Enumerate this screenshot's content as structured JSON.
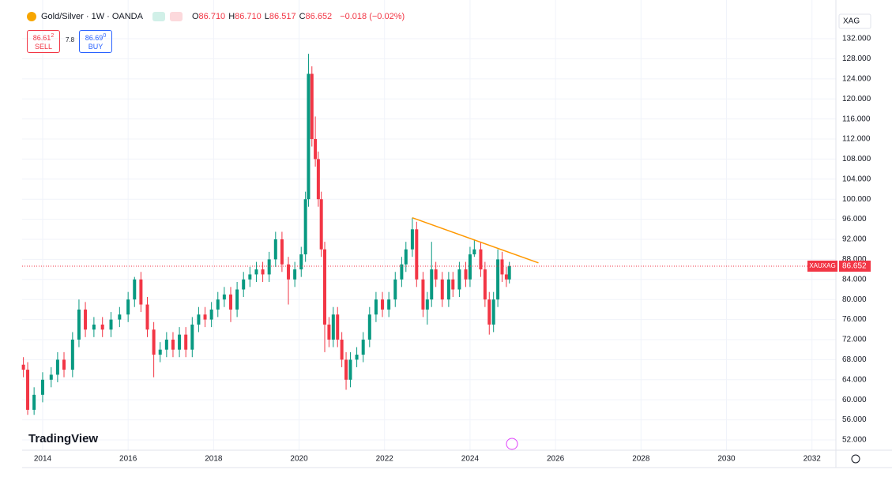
{
  "header": {
    "symbol": "Gold/Silver · 1W · OANDA",
    "ohlc": [
      {
        "key": "O",
        "value": "86.710"
      },
      {
        "key": "H",
        "value": "86.710"
      },
      {
        "key": "L",
        "value": "86.517"
      },
      {
        "key": "C",
        "value": "86.652"
      }
    ],
    "change": "−0.018 (−0.02%)",
    "sell": {
      "price": "86.61",
      "small": "2",
      "label": "SELL"
    },
    "spread": "7.8",
    "buy": {
      "price": "86.69",
      "small": "0",
      "label": "BUY"
    }
  },
  "currency": "XAG",
  "logo": "TradingView",
  "chart_data": {
    "type": "candlestick",
    "x": [
      2013.55,
      2013.65,
      2013.8,
      2014.0,
      2014.2,
      2014.35,
      2014.5,
      2014.7,
      2014.85,
      2015.0,
      2015.2,
      2015.4,
      2015.6,
      2015.8,
      2016.0,
      2016.15,
      2016.3,
      2016.45,
      2016.6,
      2016.75,
      2016.9,
      2017.05,
      2017.2,
      2017.35,
      2017.5,
      2017.65,
      2017.8,
      2017.95,
      2018.1,
      2018.25,
      2018.4,
      2018.55,
      2018.7,
      2018.85,
      2019.0,
      2019.15,
      2019.3,
      2019.45,
      2019.6,
      2019.75,
      2019.9,
      2020.05,
      2020.15,
      2020.22,
      2020.3,
      2020.38,
      2020.45,
      2020.52,
      2020.6,
      2020.7,
      2020.8,
      2020.9,
      2021.0,
      2021.1,
      2021.2,
      2021.35,
      2021.5,
      2021.65,
      2021.8,
      2021.95,
      2022.1,
      2022.25,
      2022.4,
      2022.5,
      2022.65,
      2022.75,
      2022.9,
      2023.0,
      2023.1,
      2023.2,
      2023.35,
      2023.5,
      2023.6,
      2023.75,
      2023.9,
      2024.0,
      2024.1,
      2024.25,
      2024.35,
      2024.45,
      2024.55,
      2024.65,
      2024.75,
      2024.85,
      2024.92
    ],
    "open": [
      67,
      66,
      58,
      61,
      64,
      65,
      68,
      66,
      72,
      78,
      74,
      75,
      74,
      76,
      77,
      80,
      84,
      79,
      74,
      69,
      70,
      72,
      70,
      73,
      70,
      75,
      77,
      76,
      78,
      80,
      81,
      78,
      82,
      84,
      85,
      86,
      85,
      88,
      92,
      87,
      84,
      86,
      89,
      100,
      125,
      112,
      108,
      100,
      90,
      75,
      72,
      77,
      72,
      68,
      64,
      68,
      69,
      72,
      77,
      80,
      78,
      80,
      84,
      87,
      90,
      94,
      84,
      78,
      80,
      86,
      84,
      80,
      84,
      82,
      86,
      84,
      89,
      90,
      86,
      80,
      75,
      80,
      88,
      85,
      84
    ],
    "high": [
      68.5,
      67.5,
      62.5,
      65.5,
      66.5,
      69.5,
      69.5,
      73.5,
      80,
      79.5,
      76.5,
      76.5,
      77.5,
      78.5,
      81.5,
      84.5,
      85.5,
      80.5,
      75.5,
      71.5,
      73.5,
      73.5,
      74.5,
      74.5,
      76.5,
      78.5,
      78.5,
      79.5,
      81.5,
      82.5,
      82.5,
      83.5,
      85.5,
      86.5,
      87.5,
      87.5,
      89.5,
      93.5,
      93.5,
      88.5,
      87.5,
      90.5,
      101.5,
      129,
      126.5,
      116.5,
      109.5,
      101.5,
      91.5,
      76.5,
      78.5,
      78.5,
      73.5,
      69.5,
      69.5,
      70.5,
      73.5,
      78.5,
      81.5,
      81.5,
      81.5,
      85.5,
      88.5,
      91.5,
      96.3,
      95.5,
      85.5,
      81.5,
      91.5,
      87.5,
      85.5,
      85.5,
      85.5,
      87.5,
      87.5,
      90.5,
      92,
      91.5,
      87.5,
      81.5,
      81.5,
      90,
      89.5,
      86.5,
      87.5
    ],
    "low": [
      64.5,
      57,
      57,
      59.5,
      62.5,
      63.5,
      64.5,
      64.5,
      70.5,
      72.5,
      72.5,
      72.5,
      72.5,
      74.5,
      75.5,
      78.5,
      77.5,
      72.5,
      64.5,
      67.5,
      68.5,
      68.5,
      68.5,
      68.5,
      68.5,
      73.5,
      74.5,
      74.5,
      76.5,
      78.5,
      75.5,
      76.5,
      80.5,
      82.5,
      83.5,
      83.5,
      83.5,
      86.5,
      85.5,
      79,
      82.5,
      84.5,
      87.5,
      98.5,
      110.5,
      106.5,
      98.5,
      88.5,
      69.5,
      70.5,
      70.5,
      70.5,
      66.5,
      62,
      62.5,
      66.5,
      67.5,
      70.5,
      75.5,
      76.5,
      76.5,
      78.5,
      82.5,
      85.5,
      88.5,
      82.5,
      76.5,
      75,
      78.5,
      82.5,
      78.5,
      78.5,
      80.5,
      80.5,
      82.5,
      82.5,
      88.5,
      84.5,
      78.5,
      73,
      73.5,
      78.5,
      83.5,
      82.5,
      83.2
    ],
    "close": [
      66,
      58,
      61,
      64,
      65,
      68,
      66,
      72,
      78,
      74,
      75,
      74,
      76,
      77,
      80,
      84,
      79,
      74,
      69,
      70,
      72,
      70,
      73,
      70,
      75,
      77,
      76,
      78,
      80,
      81,
      78,
      82,
      84,
      85,
      86,
      85,
      88,
      92,
      87,
      84,
      86,
      89,
      100,
      125,
      112,
      108,
      100,
      90,
      75,
      72,
      77,
      72,
      68,
      64,
      68,
      69,
      72,
      77,
      80,
      78,
      80,
      84,
      87,
      90,
      94,
      84,
      78,
      80,
      86,
      84,
      80,
      84,
      82,
      86,
      84,
      89,
      90,
      86,
      80,
      75,
      80,
      88,
      85,
      84,
      86.652
    ],
    "up_color": "#089981",
    "down_color": "#f23645",
    "xlim": [
      2013.52,
      2032.56
    ],
    "xticks": [
      2014,
      2016,
      2018,
      2020,
      2022,
      2024,
      2026,
      2028,
      2030,
      2032
    ],
    "ylim": [
      49.95,
      139.72
    ],
    "yticks": [
      {
        "value": 52,
        "label": "52.000"
      },
      {
        "value": 56,
        "label": "56.000"
      },
      {
        "value": 60,
        "label": "60.000"
      },
      {
        "value": 64,
        "label": "64.000"
      },
      {
        "value": 68,
        "label": "68.000"
      },
      {
        "value": 72,
        "label": "72.000"
      },
      {
        "value": 76,
        "label": "76.000"
      },
      {
        "value": 80,
        "label": "80.000"
      },
      {
        "value": 84,
        "label": "84.000"
      },
      {
        "value": 88,
        "label": "88.000"
      },
      {
        "value": 92,
        "label": "92.000"
      },
      {
        "value": 96,
        "label": "96.000"
      },
      {
        "value": 100,
        "label": "100.000"
      },
      {
        "value": 104,
        "label": "104.000"
      },
      {
        "value": 108,
        "label": "108.000"
      },
      {
        "value": 112,
        "label": "112.000"
      },
      {
        "value": 116,
        "label": "116.000"
      },
      {
        "value": 120,
        "label": "120.000"
      },
      {
        "value": 124,
        "label": "124.000"
      },
      {
        "value": 128,
        "label": "128.000"
      },
      {
        "value": 132,
        "label": "132.000"
      }
    ],
    "grid": true,
    "trendline": {
      "x": [
        2022.65,
        2025.6
      ],
      "y": [
        96.3,
        87.3
      ],
      "color": "#ff9800"
    },
    "price_line": {
      "value": 86.652,
      "label": "86.652",
      "symbol": "XAUXAG",
      "color": "#f23645"
    }
  }
}
